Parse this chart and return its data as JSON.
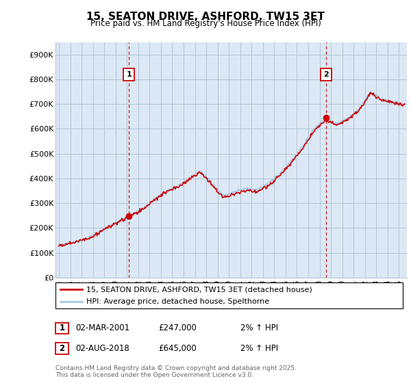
{
  "title": "15, SEATON DRIVE, ASHFORD, TW15 3ET",
  "subtitle": "Price paid vs. HM Land Registry's House Price Index (HPI)",
  "legend_line1": "15, SEATON DRIVE, ASHFORD, TW15 3ET (detached house)",
  "legend_line2": "HPI: Average price, detached house, Spelthorne",
  "annotation1_date": "02-MAR-2001",
  "annotation1_price": "£247,000",
  "annotation1_hpi": "2% ↑ HPI",
  "annotation2_date": "02-AUG-2018",
  "annotation2_price": "£645,000",
  "annotation2_hpi": "2% ↑ HPI",
  "footer": "Contains HM Land Registry data © Crown copyright and database right 2025.\nThis data is licensed under the Open Government Licence v3.0.",
  "ylim": [
    0,
    950000
  ],
  "yticks": [
    0,
    100000,
    200000,
    300000,
    400000,
    500000,
    600000,
    700000,
    800000,
    900000
  ],
  "ytick_labels": [
    "£0",
    "£100K",
    "£200K",
    "£300K",
    "£400K",
    "£500K",
    "£600K",
    "£700K",
    "£800K",
    "£900K"
  ],
  "line_color_red": "#cc0000",
  "line_color_blue": "#a8c8e8",
  "vline_color": "#cc0000",
  "background_color": "#ffffff",
  "plot_bg_color": "#dce8f5",
  "grid_color": "#b0c4d8",
  "sale1_x": 2001.17,
  "sale1_y": 247000,
  "sale2_x": 2018.58,
  "sale2_y": 645000,
  "xlim_min": 1994.7,
  "xlim_max": 2025.7
}
